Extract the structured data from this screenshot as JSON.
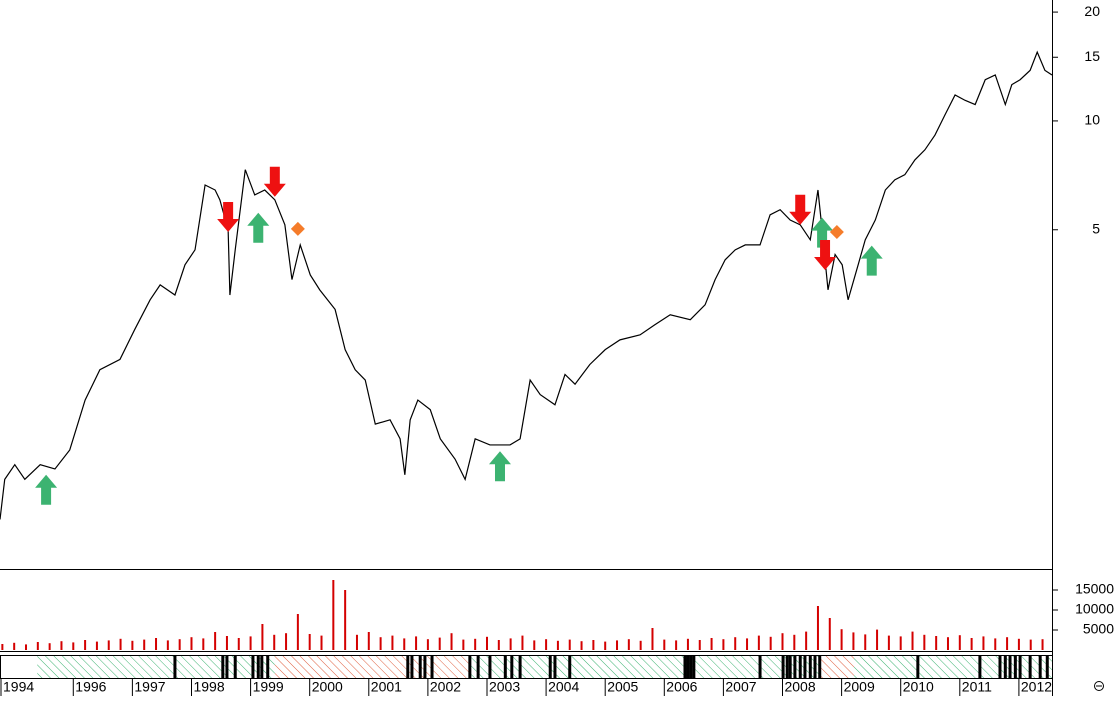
{
  "chart_data": [
    {
      "type": "line",
      "log": true,
      "xlim": [
        1994.76,
        2012.56
      ],
      "ylim": [
        0.58,
        21.6
      ],
      "yticks": [
        5,
        10,
        15,
        20
      ],
      "x": [
        1994.76,
        1994.84,
        1995.01,
        1995.18,
        1995.44,
        1995.69,
        1995.94,
        1996.2,
        1996.45,
        1996.79,
        1997.04,
        1997.3,
        1997.47,
        1997.72,
        1997.89,
        1998.06,
        1998.23,
        1998.4,
        1998.48,
        1998.62,
        1998.65,
        1998.74,
        1998.91,
        1999.07,
        1999.24,
        1999.41,
        1999.58,
        1999.7,
        1999.84,
        2000.01,
        2000.17,
        2000.43,
        2000.6,
        2000.77,
        2000.94,
        2001.11,
        2001.36,
        2001.53,
        2001.61,
        2001.7,
        2001.83,
        2002.04,
        2002.21,
        2002.46,
        2002.63,
        2002.8,
        2003.05,
        2003.39,
        2003.56,
        2003.73,
        2003.9,
        2004.15,
        2004.32,
        2004.49,
        2004.74,
        2005,
        2005.25,
        2005.59,
        2005.84,
        2006.1,
        2006.44,
        2006.69,
        2006.86,
        2007.03,
        2007.2,
        2007.37,
        2007.62,
        2007.79,
        2007.96,
        2008.13,
        2008.3,
        2008.47,
        2008.6,
        2008.67,
        2008.77,
        2008.89,
        2009.01,
        2009.11,
        2009.28,
        2009.4,
        2009.57,
        2009.74,
        2009.9,
        2010.07,
        2010.24,
        2010.41,
        2010.58,
        2010.75,
        2010.92,
        2011.09,
        2011.26,
        2011.43,
        2011.6,
        2011.77,
        2011.88,
        2012.02,
        2012.19,
        2012.31,
        2012.44,
        2012.56
      ],
      "series": [
        {
          "color": "#000000",
          "values": [
            0.79,
            1.02,
            1.12,
            1.02,
            1.12,
            1.09,
            1.23,
            1.69,
            2.05,
            2.19,
            2.65,
            3.2,
            3.52,
            3.3,
            4,
            4.4,
            6.65,
            6.44,
            6.05,
            5,
            3.3,
            4.4,
            7.33,
            6.24,
            6.44,
            6.05,
            5.16,
            3.64,
            4.54,
            3.75,
            3.41,
            3.01,
            2.33,
            2.05,
            1.92,
            1.45,
            1.49,
            1.32,
            1.05,
            1.49,
            1.69,
            1.59,
            1.32,
            1.16,
            1.02,
            1.32,
            1.27,
            1.27,
            1.32,
            1.92,
            1.75,
            1.64,
            1.99,
            1.87,
            2.12,
            2.33,
            2.48,
            2.56,
            2.73,
            2.91,
            2.82,
            3.1,
            3.64,
            4.13,
            4.4,
            4.54,
            4.54,
            5.5,
            5.68,
            5.32,
            5.16,
            4.69,
            6.44,
            5,
            3.41,
            4.27,
            4,
            3.2,
            4,
            4.69,
            5.32,
            6.44,
            6.87,
            7.1,
            7.8,
            8.32,
            9.14,
            10.4,
            11.8,
            11.4,
            11.1,
            13,
            13.4,
            11.1,
            12.6,
            13,
            13.8,
            15.5,
            13.8,
            13.4
          ]
        }
      ],
      "markers": [
        {
          "shape": "arrow-up",
          "color": "#3cb371",
          "x": [
            1995.54,
            1999.13,
            2003.22,
            2008.67,
            2009.51
          ],
          "y": [
            1.05,
            5.57,
            1.22,
            5.4,
            4.52
          ]
        },
        {
          "shape": "arrow-down",
          "color": "#ee1111",
          "x": [
            1998.62,
            1999.41,
            2008.3,
            2008.72
          ],
          "y": [
            4.93,
            6.17,
            5.16,
            3.87
          ]
        },
        {
          "shape": "diamond",
          "color": "#f57c2a",
          "x": [
            1999.8,
            2008.92
          ],
          "y": [
            5.03,
            4.93
          ]
        }
      ]
    },
    {
      "type": "bar",
      "color": "#d40000",
      "xlim": [
        1994.76,
        2012.56
      ],
      "ylim": [
        0,
        20000
      ],
      "yticks": [
        5000,
        10000,
        15000
      ],
      "x": [
        1994.8,
        1995,
        1995.2,
        1995.4,
        1995.6,
        1995.8,
        1996,
        1996.2,
        1996.4,
        1996.6,
        1996.8,
        1997,
        1997.2,
        1997.4,
        1997.6,
        1997.8,
        1998,
        1998.2,
        1998.4,
        1998.6,
        1998.8,
        1999,
        1999.2,
        1999.4,
        1999.6,
        1999.8,
        2000,
        2000.2,
        2000.4,
        2000.6,
        2000.8,
        2001,
        2001.2,
        2001.4,
        2001.6,
        2001.8,
        2002,
        2002.2,
        2002.4,
        2002.6,
        2002.8,
        2003,
        2003.2,
        2003.4,
        2003.6,
        2003.8,
        2004,
        2004.2,
        2004.4,
        2004.6,
        2004.8,
        2005,
        2005.2,
        2005.4,
        2005.6,
        2005.8,
        2006,
        2006.2,
        2006.4,
        2006.6,
        2006.8,
        2007,
        2007.2,
        2007.4,
        2007.6,
        2007.8,
        2008,
        2008.2,
        2008.4,
        2008.6,
        2008.8,
        2009,
        2009.2,
        2009.4,
        2009.6,
        2009.8,
        2010,
        2010.2,
        2010.4,
        2010.6,
        2010.8,
        2011,
        2011.2,
        2011.4,
        2011.6,
        2011.8,
        2012,
        2012.2,
        2012.4
      ],
      "values": [
        1500,
        1800,
        1400,
        2000,
        1700,
        2200,
        1900,
        2500,
        2100,
        2400,
        2800,
        2300,
        2600,
        3000,
        2400,
        2700,
        3200,
        2900,
        4500,
        3500,
        3000,
        3400,
        6500,
        3800,
        4200,
        9000,
        4000,
        3600,
        17500,
        15000,
        3800,
        4500,
        3200,
        3600,
        2900,
        3400,
        2700,
        3100,
        4200,
        2600,
        2800,
        3300,
        2500,
        2900,
        3600,
        2400,
        2700,
        2300,
        2600,
        2200,
        2500,
        2100,
        2400,
        2700,
        2300,
        5500,
        2600,
        2400,
        2800,
        2500,
        3000,
        2700,
        3200,
        2900,
        3600,
        3300,
        4200,
        3800,
        4600,
        11000,
        8000,
        5200,
        4400,
        3900,
        5100,
        3600,
        3400,
        4600,
        3800,
        3500,
        3200,
        3700,
        3000,
        3400,
        2900,
        3200,
        2800,
        2600,
        2700
      ]
    },
    {
      "type": "timeline",
      "xlim": [
        1994.76,
        2012.56
      ],
      "xticks": [
        1994,
        1996,
        1997,
        1998,
        1999,
        2000,
        2001,
        2002,
        2003,
        2004,
        2005,
        2006,
        2007,
        2008,
        2009,
        2010,
        2011,
        2012
      ],
      "segments": [
        {
          "start": 1994.76,
          "end": 1995.39,
          "color": "#ffffff"
        },
        {
          "start": 1995.39,
          "end": 1999.41,
          "color": "#3cb371"
        },
        {
          "start": 1999.41,
          "end": 2002.71,
          "color": "#e06040"
        },
        {
          "start": 2002.71,
          "end": 2008.65,
          "color": "#3cb371"
        },
        {
          "start": 2008.65,
          "end": 2009.21,
          "color": "#e06040"
        },
        {
          "start": 2009.21,
          "end": 2012.56,
          "color": "#3cb371"
        }
      ],
      "marks": {
        "color": "#000000",
        "x": [
          1997.72,
          1998.53,
          1998.6,
          1998.74,
          1999.04,
          1999.13,
          1999.19,
          1999.29,
          2001.66,
          2001.73,
          2001.87,
          2001.95,
          2002.07,
          2002.71,
          2002.85,
          2003.05,
          2003.31,
          2003.42,
          2003.56,
          2004.07,
          2004.15,
          2004.4,
          2006.35,
          2006.4,
          2006.45,
          2006.5,
          2007.62,
          2008.01,
          2008.08,
          2008.13,
          2008.21,
          2008.3,
          2008.38,
          2008.47,
          2008.55,
          2008.63,
          2010.29,
          2011.34,
          2011.68,
          2011.77,
          2011.85,
          2011.94,
          2012.02,
          2012.19,
          2012.36,
          2012.48
        ]
      }
    }
  ]
}
